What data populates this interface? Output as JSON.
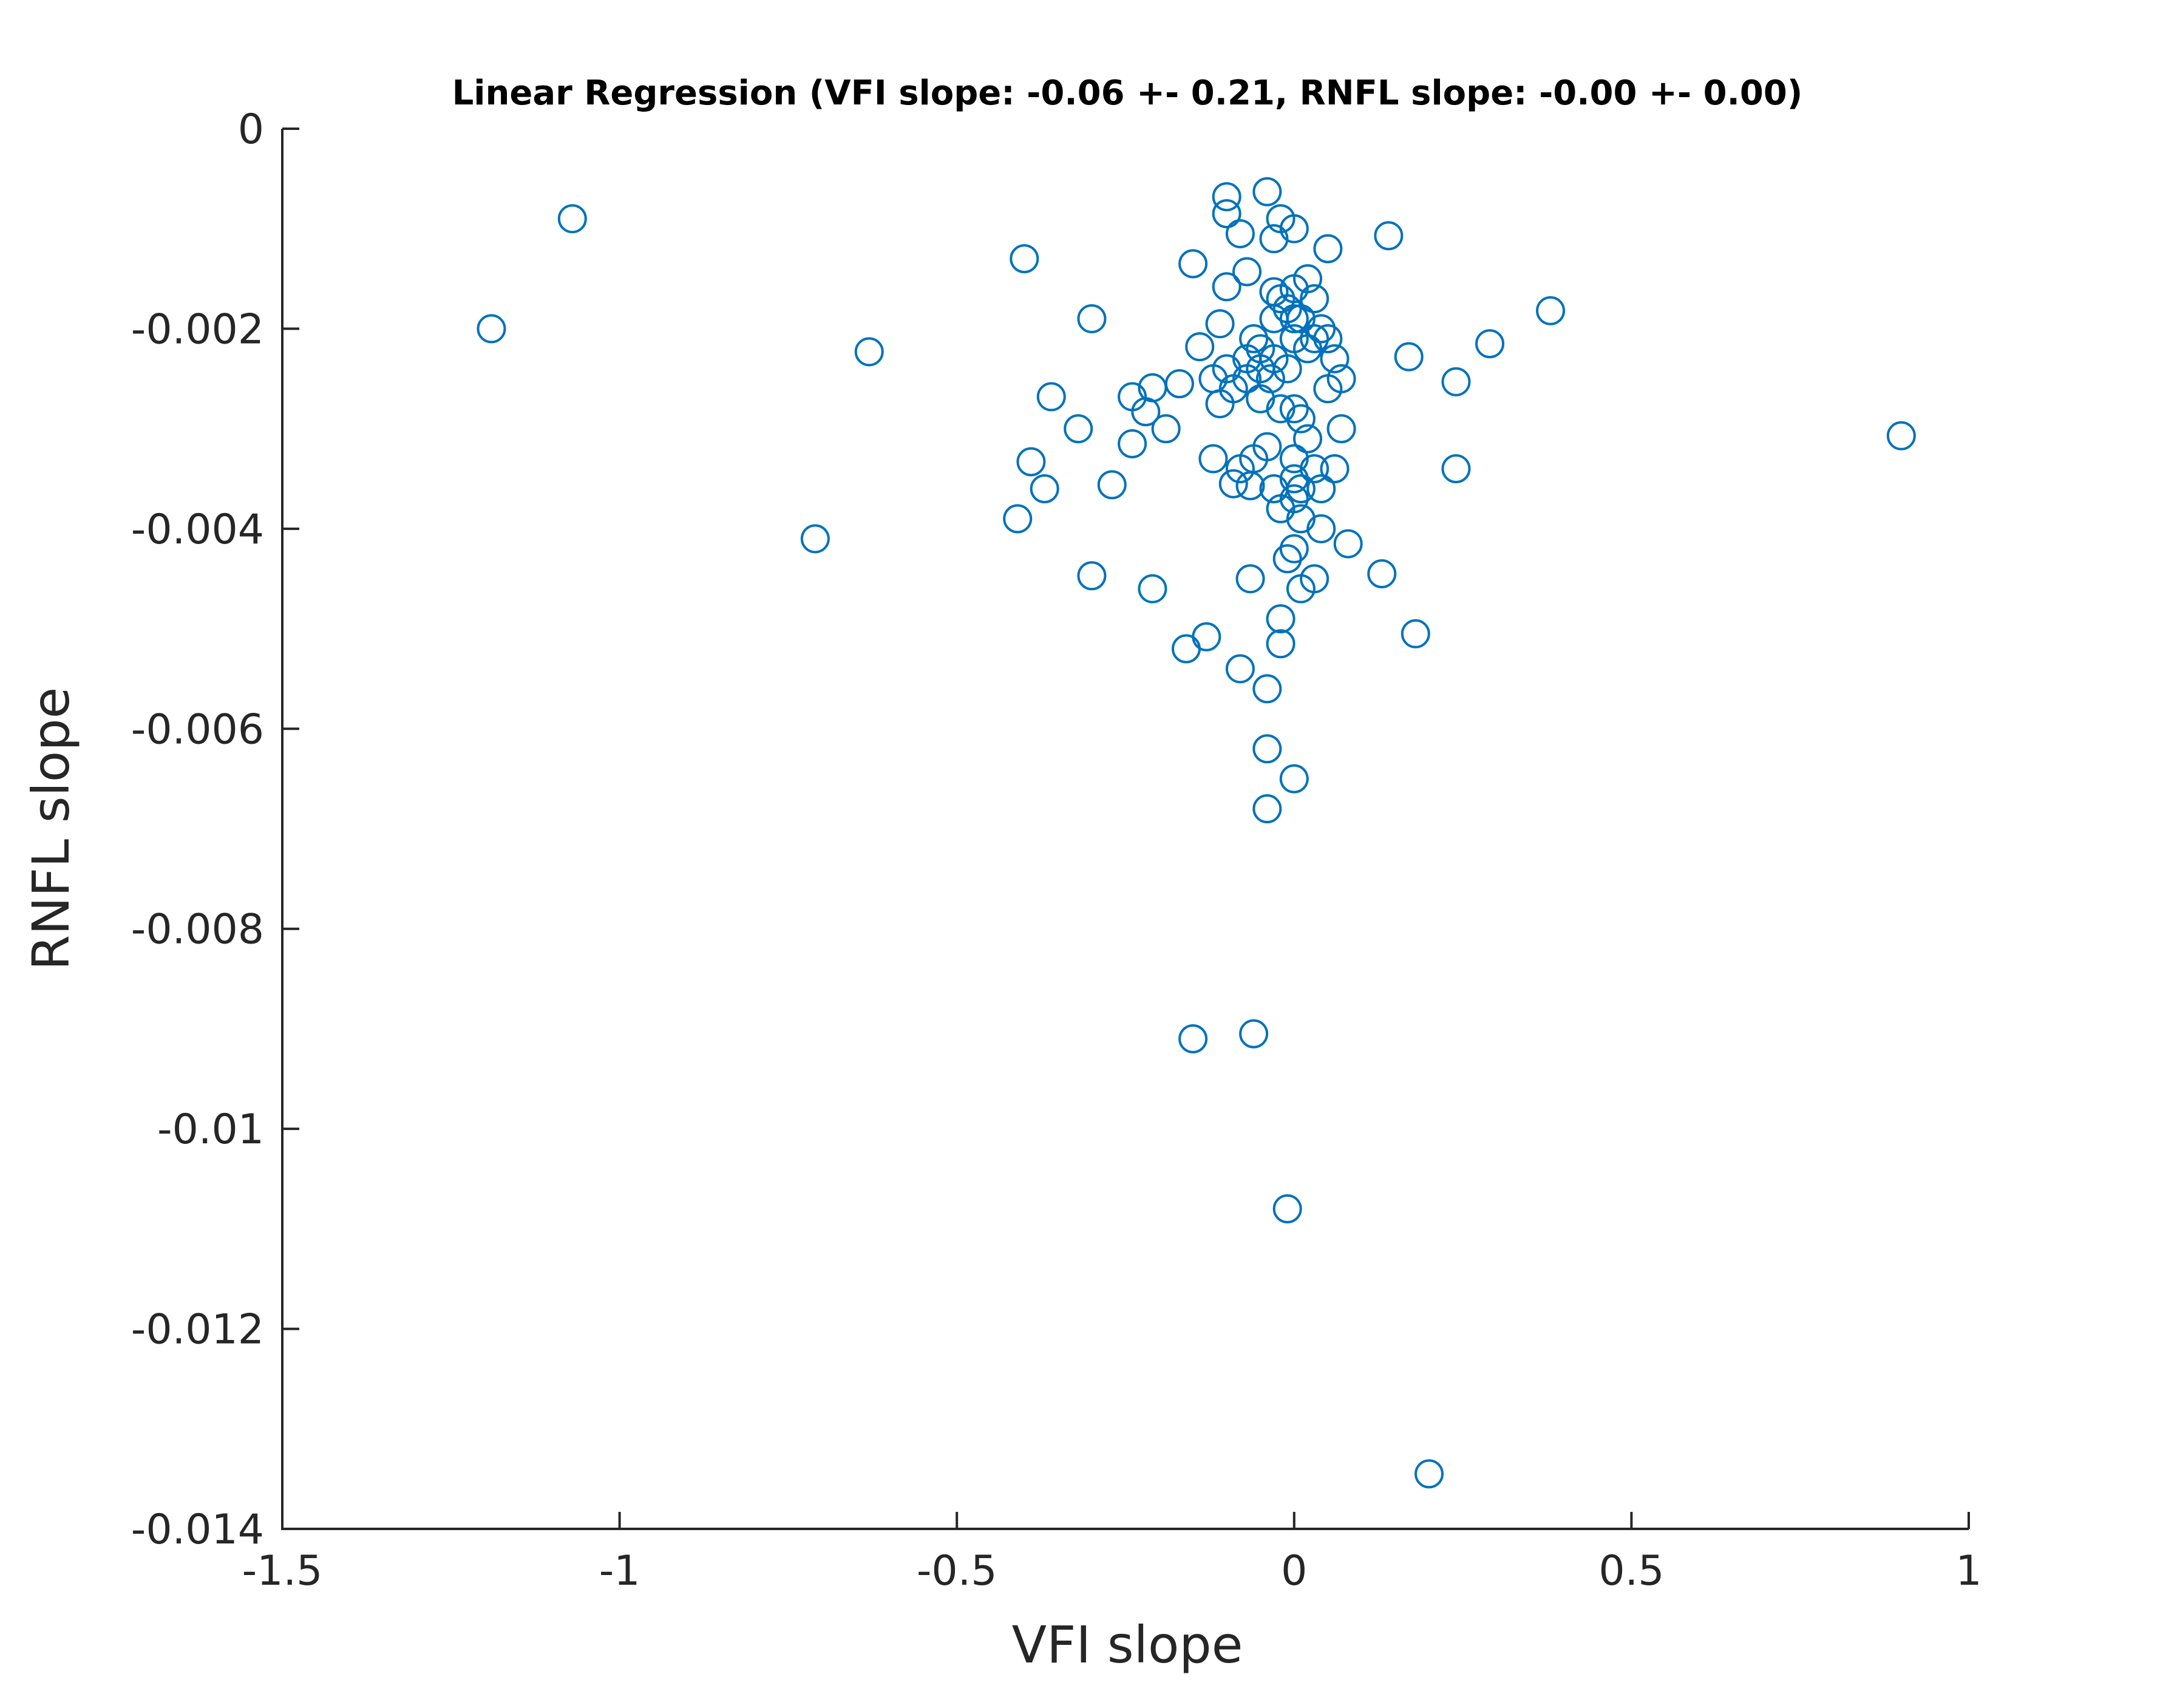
{
  "chart_data": {
    "type": "scatter",
    "title": "Linear Regression (VFI slope: -0.06 +- 0.21, RNFL slope: -0.00 +- 0.00)",
    "xlabel": "VFI slope",
    "ylabel": "RNFL slope",
    "xlim": [
      -1.5,
      1
    ],
    "ylim": [
      -0.014,
      0
    ],
    "xticks": [
      -1.5,
      -1,
      -0.5,
      0,
      0.5,
      1
    ],
    "xtick_labels": [
      "-1.5",
      "-1",
      "-0.5",
      "0",
      "0.5",
      "1"
    ],
    "yticks": [
      0,
      -0.002,
      -0.004,
      -0.006,
      -0.008,
      -0.01,
      -0.012,
      -0.014
    ],
    "ytick_labels": [
      "0",
      "-0.002",
      "-0.004",
      "-0.006",
      "-0.008",
      "-0.01",
      "-0.012",
      "-0.014"
    ],
    "grid": false,
    "legend": "none",
    "marker": "open-circle",
    "marker_color": "#0072BD",
    "axis_color": "#262626",
    "points": [
      [
        -1.07,
        -0.0009
      ],
      [
        -1.19,
        -0.002
      ],
      [
        -0.71,
        -0.0041
      ],
      [
        -0.63,
        -0.00223
      ],
      [
        -0.4,
        -0.0013
      ],
      [
        -0.41,
        -0.0039
      ],
      [
        -0.39,
        -0.00333
      ],
      [
        -0.37,
        -0.0036
      ],
      [
        -0.36,
        -0.00268
      ],
      [
        -0.32,
        -0.003
      ],
      [
        -0.3,
        -0.0019
      ],
      [
        -0.3,
        -0.00447
      ],
      [
        -0.27,
        -0.00356
      ],
      [
        -0.24,
        -0.00268
      ],
      [
        -0.24,
        -0.00315
      ],
      [
        -0.22,
        -0.00283
      ],
      [
        -0.21,
        -0.0046
      ],
      [
        -0.21,
        -0.00259
      ],
      [
        -0.19,
        -0.003
      ],
      [
        -0.17,
        -0.00255
      ],
      [
        -0.16,
        -0.0052
      ],
      [
        -0.15,
        -0.0091
      ],
      [
        -0.15,
        -0.00135
      ],
      [
        -0.14,
        -0.00218
      ],
      [
        -0.13,
        -0.00508
      ],
      [
        -0.12,
        -0.0033
      ],
      [
        -0.12,
        -0.0025
      ],
      [
        -0.11,
        -0.00195
      ],
      [
        -0.11,
        -0.00275
      ],
      [
        -0.1,
        -0.00068
      ],
      [
        -0.1,
        -0.00085
      ],
      [
        -0.1,
        -0.00158
      ],
      [
        -0.1,
        -0.0024
      ],
      [
        -0.09,
        -0.0026
      ],
      [
        -0.09,
        -0.00355
      ],
      [
        -0.08,
        -0.00105
      ],
      [
        -0.08,
        -0.0054
      ],
      [
        -0.08,
        -0.0034
      ],
      [
        -0.07,
        -0.0023
      ],
      [
        -0.07,
        -0.0025
      ],
      [
        -0.07,
        -0.00143
      ],
      [
        -0.065,
        -0.00357
      ],
      [
        -0.065,
        -0.0045
      ],
      [
        -0.06,
        -0.0033
      ],
      [
        -0.06,
        -0.0021
      ],
      [
        -0.06,
        -0.00905
      ],
      [
        -0.05,
        -0.0022
      ],
      [
        -0.05,
        -0.0027
      ],
      [
        -0.05,
        -0.0024
      ],
      [
        -0.04,
        -0.00318
      ],
      [
        -0.04,
        -0.00063
      ],
      [
        -0.04,
        -0.0056
      ],
      [
        -0.04,
        -0.0062
      ],
      [
        -0.04,
        -0.0068
      ],
      [
        -0.035,
        -0.0025
      ],
      [
        -0.03,
        -0.0011
      ],
      [
        -0.03,
        -0.00163
      ],
      [
        -0.03,
        -0.0019
      ],
      [
        -0.03,
        -0.0023
      ],
      [
        -0.03,
        -0.0036
      ],
      [
        -0.02,
        -0.0009
      ],
      [
        -0.02,
        -0.0017
      ],
      [
        -0.02,
        -0.0028
      ],
      [
        -0.02,
        -0.0038
      ],
      [
        -0.02,
        -0.0049
      ],
      [
        -0.02,
        -0.00515
      ],
      [
        -0.01,
        -0.0018
      ],
      [
        -0.01,
        -0.0024
      ],
      [
        -0.01,
        -0.0043
      ],
      [
        -0.01,
        -0.0108
      ],
      [
        0,
        -0.001
      ],
      [
        0,
        -0.0016
      ],
      [
        0,
        -0.0019
      ],
      [
        0,
        -0.0021
      ],
      [
        0,
        -0.0028
      ],
      [
        0,
        -0.0033
      ],
      [
        0,
        -0.0035
      ],
      [
        0,
        -0.0037
      ],
      [
        0,
        -0.0042
      ],
      [
        0,
        -0.0065
      ],
      [
        0.01,
        -0.0019
      ],
      [
        0.01,
        -0.0029
      ],
      [
        0.01,
        -0.0036
      ],
      [
        0.01,
        -0.0039
      ],
      [
        0.01,
        -0.0046
      ],
      [
        0.02,
        -0.0015
      ],
      [
        0.02,
        -0.0022
      ],
      [
        0.02,
        -0.0031
      ],
      [
        0.03,
        -0.0017
      ],
      [
        0.03,
        -0.0021
      ],
      [
        0.03,
        -0.0034
      ],
      [
        0.03,
        -0.0045
      ],
      [
        0.04,
        -0.002
      ],
      [
        0.04,
        -0.0036
      ],
      [
        0.04,
        -0.004
      ],
      [
        0.05,
        -0.0012
      ],
      [
        0.05,
        -0.0021
      ],
      [
        0.05,
        -0.0026
      ],
      [
        0.06,
        -0.0023
      ],
      [
        0.06,
        -0.0034
      ],
      [
        0.07,
        -0.003
      ],
      [
        0.07,
        -0.0025
      ],
      [
        0.08,
        -0.00415
      ],
      [
        0.13,
        -0.00445
      ],
      [
        0.14,
        -0.00107
      ],
      [
        0.17,
        -0.00228
      ],
      [
        0.18,
        -0.00505
      ],
      [
        0.2,
        -0.01345
      ],
      [
        0.24,
        -0.00253
      ],
      [
        0.24,
        -0.0034
      ],
      [
        0.29,
        -0.00215
      ],
      [
        0.38,
        -0.00182
      ],
      [
        0.9,
        -0.00307
      ]
    ]
  }
}
